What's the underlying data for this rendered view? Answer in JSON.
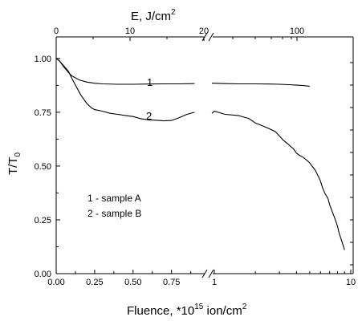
{
  "chart_data": {
    "type": "line",
    "title": "",
    "xlabel": {
      "prefix": "Fluence, *10",
      "exponent": "15",
      "unit": " ion/cm",
      "unit_exponent": "2"
    },
    "top_xlabel": {
      "text": "E, J/cm",
      "exponent": "2"
    },
    "ylabel": {
      "base": "T/T",
      "subscript": "0"
    },
    "x_segments": [
      {
        "name": "left",
        "xlim": [
          0,
          0.95
        ],
        "bottom_ticks": [
          "0.00",
          "0.25",
          "0.50",
          "0.75"
        ],
        "bottom_tick_values": [
          0,
          0.25,
          0.5,
          0.75
        ],
        "top_ticks": [
          "0",
          "10",
          "20"
        ],
        "top_tick_values": [
          0,
          10,
          20
        ]
      },
      {
        "name": "right",
        "bottom_ticks": [
          "1",
          "10"
        ],
        "top_ticks": [
          "100"
        ]
      }
    ],
    "ylim": [
      0,
      1.1
    ],
    "y_ticks": [
      "0.00",
      "0.25",
      "0.50",
      "0.75",
      "1.00"
    ],
    "y_tick_values": [
      0,
      0.25,
      0.5,
      0.75,
      1.0
    ],
    "break_symbol": "//",
    "grid": false,
    "series": [
      {
        "name": "1",
        "left": {
          "x": [
            0,
            0.02,
            0.05,
            0.08,
            0.1,
            0.15,
            0.2,
            0.25,
            0.3,
            0.4,
            0.5,
            0.6,
            0.7,
            0.8,
            0.9
          ],
          "y": [
            1.0,
            0.99,
            0.96,
            0.935,
            0.92,
            0.9,
            0.89,
            0.885,
            0.882,
            0.88,
            0.88,
            0.881,
            0.882,
            0.882,
            0.883
          ]
        },
        "right": {
          "x": [
            0.96,
            1.0,
            1.2,
            1.5,
            2.0,
            2.5,
            3.0,
            3.5,
            4.0,
            4.5,
            5.0
          ],
          "y": [
            0.885,
            0.885,
            0.883,
            0.882,
            0.882,
            0.881,
            0.88,
            0.878,
            0.876,
            0.874,
            0.871
          ]
        }
      },
      {
        "name": "2",
        "left": {
          "x": [
            0,
            0.02,
            0.05,
            0.08,
            0.1,
            0.13,
            0.16,
            0.2,
            0.23,
            0.25,
            0.3,
            0.35,
            0.4,
            0.45,
            0.5,
            0.55,
            0.6,
            0.65,
            0.7,
            0.75,
            0.8,
            0.85,
            0.9
          ],
          "y": [
            1.0,
            0.99,
            0.965,
            0.94,
            0.91,
            0.87,
            0.83,
            0.79,
            0.77,
            0.762,
            0.755,
            0.745,
            0.74,
            0.735,
            0.73,
            0.72,
            0.715,
            0.713,
            0.71,
            0.712,
            0.725,
            0.74,
            0.75
          ]
        },
        "right": {
          "x": [
            0.96,
            1.0,
            1.2,
            1.5,
            1.8,
            2.0,
            2.2,
            2.5,
            2.8,
            3.0,
            3.2,
            3.5,
            3.8,
            4.0,
            4.2,
            4.5,
            4.8,
            5.0,
            5.2,
            5.5,
            5.8,
            6.0,
            6.2,
            6.5,
            6.8,
            7.0,
            7.2,
            7.5,
            7.8,
            8.0,
            8.2,
            8.5,
            8.8,
            9.0
          ],
          "y": [
            0.745,
            0.755,
            0.74,
            0.735,
            0.72,
            0.7,
            0.69,
            0.675,
            0.66,
            0.64,
            0.62,
            0.6,
            0.58,
            0.56,
            0.55,
            0.54,
            0.525,
            0.515,
            0.5,
            0.48,
            0.45,
            0.43,
            0.4,
            0.37,
            0.35,
            0.32,
            0.3,
            0.27,
            0.24,
            0.22,
            0.19,
            0.16,
            0.13,
            0.11
          ]
        }
      }
    ],
    "curve_labels": [
      "1",
      "2"
    ],
    "legend_entries": [
      "1 - sample A",
      "2 - sample B"
    ]
  }
}
